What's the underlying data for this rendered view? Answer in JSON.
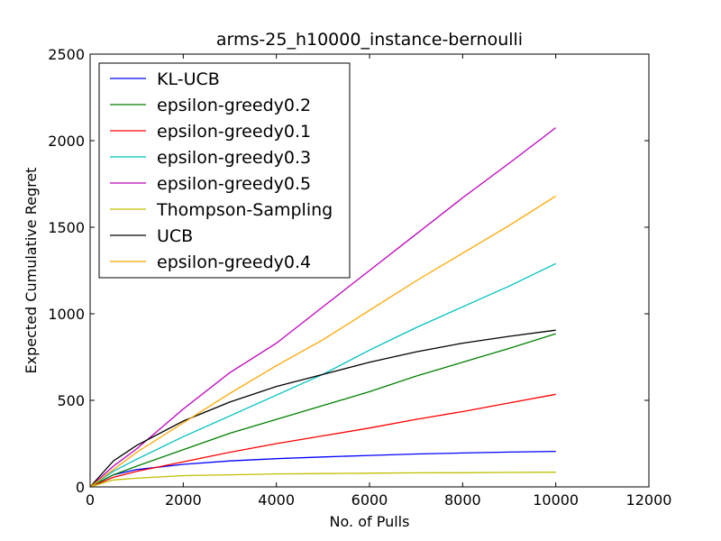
{
  "chart_data": {
    "type": "line",
    "title": "arms-25_h10000_instance-bernoulli",
    "xlabel": "No. of Pulls",
    "ylabel": "Expected Cumulative Regret",
    "xlim": [
      0,
      12000
    ],
    "ylim": [
      0,
      2500
    ],
    "xticks": [
      0,
      2000,
      4000,
      6000,
      8000,
      10000,
      12000
    ],
    "yticks": [
      0,
      500,
      1000,
      1500,
      2000,
      2500
    ],
    "xtick_labels": [
      "0",
      "2000",
      "4000",
      "6000",
      "8000",
      "10000",
      "12000"
    ],
    "ytick_labels": [
      "0",
      "500",
      "1000",
      "1500",
      "2000",
      "2500"
    ],
    "grid": false,
    "legend_position": "top-left",
    "x": [
      0,
      500,
      1000,
      2000,
      3000,
      4000,
      5000,
      6000,
      7000,
      8000,
      9000,
      10000
    ],
    "series": [
      {
        "name": "KL-UCB",
        "color": "#0000ff",
        "values": [
          0,
          70,
          100,
          130,
          150,
          163,
          173,
          182,
          190,
          196,
          201,
          205
        ]
      },
      {
        "name": "epsilon-greedy0.2",
        "color": "#008000",
        "values": [
          0,
          70,
          120,
          215,
          310,
          390,
          470,
          550,
          640,
          720,
          800,
          885
        ]
      },
      {
        "name": "epsilon-greedy0.1",
        "color": "#ff0000",
        "values": [
          0,
          55,
          90,
          145,
          200,
          250,
          295,
          340,
          390,
          435,
          485,
          535
        ]
      },
      {
        "name": "epsilon-greedy0.3",
        "color": "#00bfbf",
        "values": [
          0,
          90,
          160,
          290,
          410,
          530,
          650,
          790,
          920,
          1040,
          1160,
          1290
        ]
      },
      {
        "name": "epsilon-greedy0.5",
        "color": "#bf00bf",
        "values": [
          0,
          120,
          220,
          450,
          660,
          830,
          1040,
          1250,
          1460,
          1670,
          1870,
          2075
        ]
      },
      {
        "name": "Thompson-Sampling",
        "color": "#bfbf00",
        "values": [
          0,
          40,
          50,
          65,
          70,
          75,
          77,
          79,
          81,
          82,
          84,
          85
        ]
      },
      {
        "name": "UCB",
        "color": "#000000",
        "values": [
          0,
          150,
          240,
          380,
          490,
          580,
          650,
          720,
          780,
          830,
          870,
          905
        ]
      },
      {
        "name": "epsilon-greedy0.4",
        "color": "#ffa500",
        "values": [
          0,
          100,
          200,
          370,
          540,
          700,
          850,
          1020,
          1190,
          1350,
          1510,
          1680
        ]
      }
    ]
  }
}
